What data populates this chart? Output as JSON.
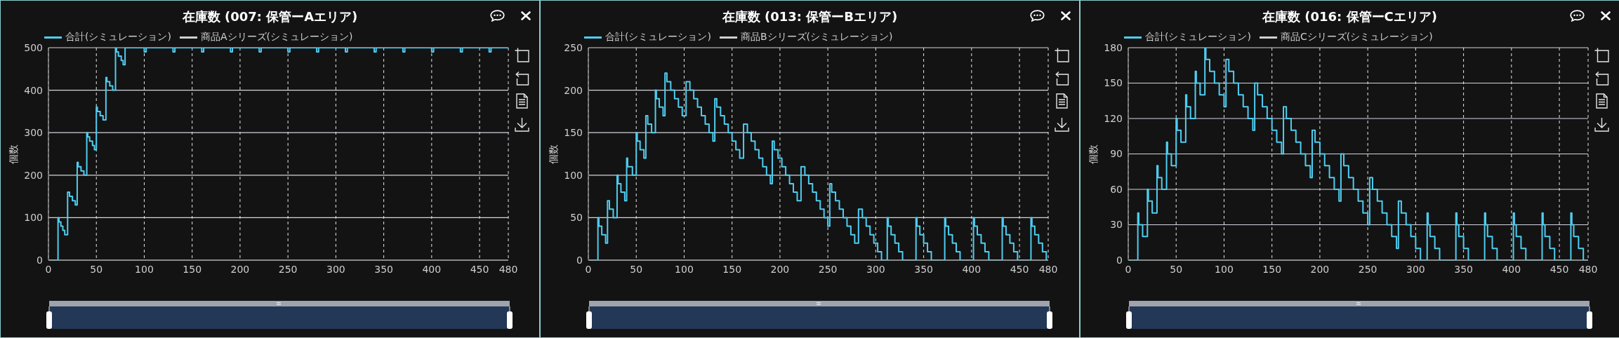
{
  "chart_data": [
    {
      "type": "step",
      "title": "在庫数 (007: 保管ーAエリア)",
      "ylabel": "個数",
      "legend": "top left",
      "grid": true,
      "xlim": [
        0,
        480
      ],
      "xticks": [
        0,
        50,
        100,
        150,
        200,
        250,
        300,
        350,
        400,
        450,
        480
      ],
      "ylim": [
        0,
        500
      ],
      "yticks": [
        0,
        100,
        200,
        300,
        400,
        500
      ],
      "series": [
        {
          "name": "合計(シミュレーション)",
          "color": "#4fcdf0",
          "x": [
            0,
            10,
            11,
            13,
            15,
            17,
            20,
            22,
            25,
            28,
            30,
            31,
            34,
            37,
            40,
            41,
            43,
            46,
            48,
            50,
            51,
            54,
            57,
            60,
            61,
            64,
            67,
            70,
            71,
            73,
            76,
            78,
            80,
            100,
            102,
            130,
            132,
            160,
            162,
            190,
            192,
            220,
            222,
            250,
            252,
            280,
            282,
            310,
            312,
            340,
            342,
            370,
            372,
            400,
            402,
            430,
            432,
            460,
            462,
            480
          ],
          "values": [
            0,
            100,
            90,
            80,
            70,
            60,
            160,
            150,
            140,
            130,
            230,
            220,
            210,
            200,
            300,
            290,
            280,
            270,
            260,
            360,
            350,
            340,
            330,
            430,
            420,
            410,
            400,
            500,
            490,
            480,
            470,
            460,
            500,
            490,
            500,
            490,
            500,
            490,
            500,
            490,
            500,
            490,
            500,
            490,
            500,
            490,
            500,
            490,
            500,
            490,
            500,
            490,
            500,
            490,
            500,
            490,
            500,
            490,
            500,
            500
          ]
        },
        {
          "name": "商品Aシリーズ(シミュレーション)",
          "color": "#d0d0d0"
        }
      ]
    },
    {
      "type": "step",
      "title": "在庫数 (013: 保管ーBエリア)",
      "ylabel": "個数",
      "legend": "top left",
      "grid": true,
      "xlim": [
        0,
        480
      ],
      "xticks": [
        0,
        50,
        100,
        150,
        200,
        250,
        300,
        350,
        400,
        450,
        480
      ],
      "ylim": [
        0,
        250
      ],
      "yticks": [
        0,
        50,
        100,
        150,
        200,
        250
      ],
      "series": [
        {
          "name": "合計(シミュレーション)",
          "color": "#4fcdf0",
          "x": [
            0,
            10,
            11,
            14,
            18,
            20,
            22,
            26,
            30,
            31,
            34,
            38,
            40,
            41,
            46,
            50,
            51,
            54,
            58,
            60,
            62,
            66,
            70,
            71,
            74,
            78,
            80,
            82,
            86,
            90,
            94,
            98,
            102,
            106,
            110,
            114,
            118,
            122,
            126,
            130,
            132,
            134,
            138,
            142,
            146,
            150,
            154,
            158,
            162,
            166,
            170,
            174,
            178,
            182,
            186,
            190,
            192,
            194,
            198,
            202,
            206,
            210,
            214,
            218,
            222,
            226,
            230,
            234,
            238,
            242,
            246,
            250,
            252,
            254,
            258,
            262,
            266,
            270,
            274,
            278,
            282,
            286,
            290,
            294,
            298,
            302,
            306,
            312,
            313,
            316,
            320,
            324,
            328,
            342,
            343,
            346,
            350,
            354,
            358,
            372,
            373,
            376,
            380,
            384,
            388,
            402,
            403,
            406,
            410,
            414,
            418,
            432,
            433,
            436,
            440,
            444,
            448,
            462,
            463,
            466,
            470,
            474,
            478,
            480
          ],
          "values": [
            0,
            50,
            40,
            30,
            20,
            70,
            60,
            50,
            100,
            90,
            80,
            70,
            120,
            110,
            100,
            150,
            140,
            130,
            120,
            170,
            160,
            150,
            200,
            190,
            180,
            170,
            220,
            210,
            200,
            190,
            180,
            170,
            210,
            200,
            190,
            180,
            170,
            160,
            150,
            140,
            190,
            180,
            170,
            160,
            150,
            140,
            130,
            120,
            160,
            150,
            140,
            130,
            120,
            110,
            100,
            90,
            140,
            130,
            120,
            110,
            100,
            90,
            80,
            70,
            110,
            100,
            90,
            80,
            70,
            60,
            50,
            40,
            90,
            80,
            70,
            60,
            50,
            40,
            30,
            20,
            60,
            50,
            40,
            30,
            20,
            10,
            0,
            50,
            40,
            30,
            20,
            10,
            0,
            50,
            40,
            30,
            20,
            10,
            0,
            50,
            40,
            30,
            20,
            10,
            0,
            50,
            40,
            30,
            20,
            10,
            0,
            50,
            40,
            30,
            20,
            10,
            0,
            50,
            40,
            30,
            20,
            10,
            0,
            0
          ]
        },
        {
          "name": "商品Bシリーズ(シミュレーション)",
          "color": "#d0d0d0"
        }
      ]
    },
    {
      "type": "step",
      "title": "在庫数 (016: 保管ーCエリア)",
      "ylabel": "個数",
      "legend": "top left",
      "grid": true,
      "xlim": [
        0,
        480
      ],
      "xticks": [
        0,
        50,
        100,
        150,
        200,
        250,
        300,
        350,
        400,
        450,
        480
      ],
      "ylim": [
        0,
        180
      ],
      "yticks": [
        0,
        30,
        60,
        90,
        120,
        150,
        180
      ],
      "series": [
        {
          "name": "合計(シミュレーション)",
          "color": "#4fcdf0",
          "x": [
            0,
            10,
            11,
            15,
            20,
            21,
            25,
            30,
            31,
            35,
            40,
            41,
            45,
            50,
            51,
            55,
            60,
            61,
            65,
            70,
            71,
            75,
            80,
            81,
            85,
            90,
            95,
            100,
            102,
            105,
            110,
            115,
            120,
            125,
            130,
            132,
            135,
            140,
            145,
            150,
            155,
            160,
            162,
            165,
            170,
            175,
            180,
            185,
            190,
            192,
            195,
            200,
            205,
            210,
            215,
            220,
            222,
            225,
            230,
            235,
            240,
            245,
            250,
            252,
            255,
            260,
            265,
            270,
            275,
            280,
            282,
            285,
            290,
            295,
            300,
            305,
            312,
            313,
            315,
            320,
            325,
            342,
            343,
            345,
            350,
            355,
            372,
            373,
            375,
            380,
            385,
            402,
            403,
            405,
            410,
            415,
            432,
            433,
            435,
            440,
            445,
            462,
            463,
            465,
            470,
            475,
            480
          ],
          "values": [
            0,
            40,
            30,
            20,
            60,
            50,
            40,
            80,
            70,
            60,
            100,
            90,
            80,
            120,
            110,
            100,
            140,
            130,
            120,
            160,
            150,
            140,
            180,
            170,
            160,
            150,
            140,
            130,
            170,
            160,
            150,
            140,
            130,
            120,
            110,
            150,
            140,
            130,
            120,
            110,
            100,
            90,
            130,
            120,
            110,
            100,
            90,
            80,
            70,
            110,
            100,
            90,
            80,
            70,
            60,
            50,
            90,
            80,
            70,
            60,
            50,
            40,
            30,
            70,
            60,
            50,
            40,
            30,
            20,
            10,
            50,
            40,
            30,
            20,
            10,
            0,
            40,
            30,
            20,
            10,
            0,
            40,
            30,
            20,
            10,
            0,
            40,
            30,
            20,
            10,
            0,
            40,
            30,
            20,
            10,
            0,
            40,
            30,
            20,
            10,
            0,
            40,
            30,
            20,
            10,
            0,
            0
          ]
        },
        {
          "name": "商品Cシリーズ(シミュレーション)",
          "color": "#d0d0d0"
        }
      ]
    }
  ]
}
